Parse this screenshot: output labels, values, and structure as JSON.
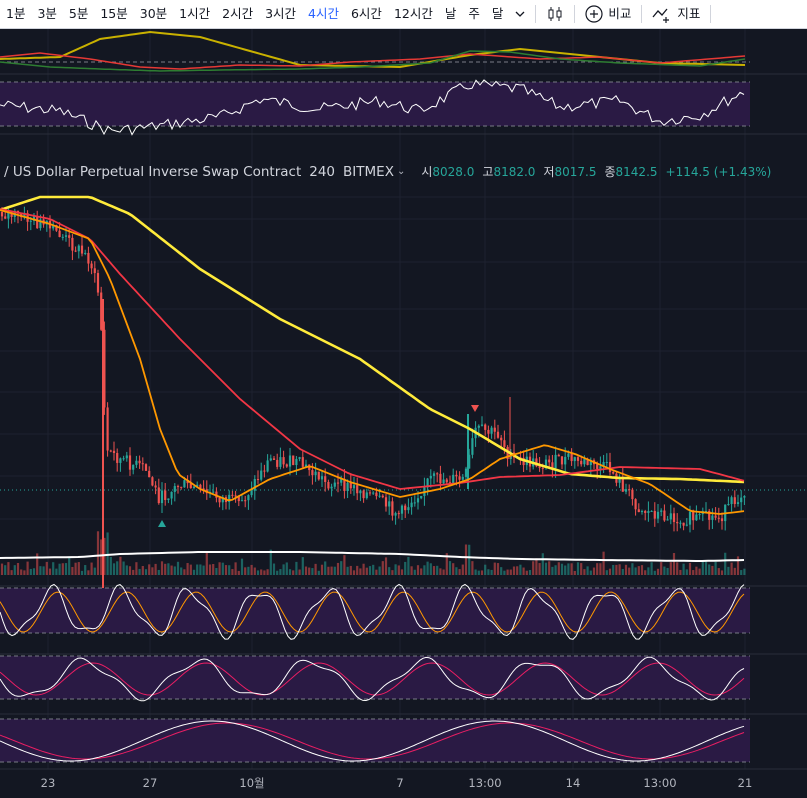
{
  "toolbar": {
    "intervals": [
      {
        "label": "1분",
        "active": false
      },
      {
        "label": "3분",
        "active": false
      },
      {
        "label": "5분",
        "active": false
      },
      {
        "label": "15분",
        "active": false
      },
      {
        "label": "30분",
        "active": false
      },
      {
        "label": "1시간",
        "active": false
      },
      {
        "label": "2시간",
        "active": false
      },
      {
        "label": "3시간",
        "active": false
      },
      {
        "label": "4시간",
        "active": true
      },
      {
        "label": "6시간",
        "active": false
      },
      {
        "label": "12시간",
        "active": false
      },
      {
        "label": "날",
        "active": false
      },
      {
        "label": "주",
        "active": false
      },
      {
        "label": "달",
        "active": false
      }
    ],
    "compare_label": "비교",
    "indicators_label": "지표",
    "active_color": "#2962ff"
  },
  "legend": {
    "title": "/ US Dollar Perpetual Inverse Swap Contract",
    "interval": "240",
    "exchange": "BITMEX",
    "open_label": "시",
    "open": "8028.0",
    "high_label": "고",
    "high": "8182.0",
    "low_label": "저",
    "low": "8017.5",
    "close_label": "종",
    "close": "8142.5",
    "change": "+114.5 (+1.43%)"
  },
  "x_axis": {
    "ticks": [
      "23",
      "27",
      "10월",
      "7",
      "13:00",
      "14",
      "13:00",
      "21"
    ]
  },
  "colors": {
    "background": "#131722",
    "up_candle": "#26a69a",
    "down_candle": "#ef5350",
    "ma_fast": "#ff9800",
    "ma_mid": "#f23645",
    "ma_slow": "#ffeb3b",
    "volume_ma": "#ffffff",
    "indicator_band": "#2a1a44",
    "indicator_line": "#ffffff"
  },
  "chart_data": {
    "type": "candlestick",
    "symbol": "US Dollar Perpetual Inverse Swap Contract",
    "interval": "240",
    "exchange": "BITMEX",
    "last_candle": {
      "open": 8028.0,
      "high": 8182.0,
      "low": 8017.5,
      "close": 8142.5,
      "change": 114.5,
      "change_pct": 1.43
    },
    "moving_averages": [
      "ma_fast",
      "ma_mid",
      "ma_slow"
    ],
    "panes": [
      "directional-indicator",
      "rsi",
      "main-price",
      "volume",
      "stochastic-rsi",
      "stochastic",
      "oscillator"
    ],
    "x_ticks": [
      "23",
      "27",
      "10월",
      "7",
      "13:00",
      "14",
      "13:00",
      "21"
    ],
    "price_axis_shown": false
  }
}
